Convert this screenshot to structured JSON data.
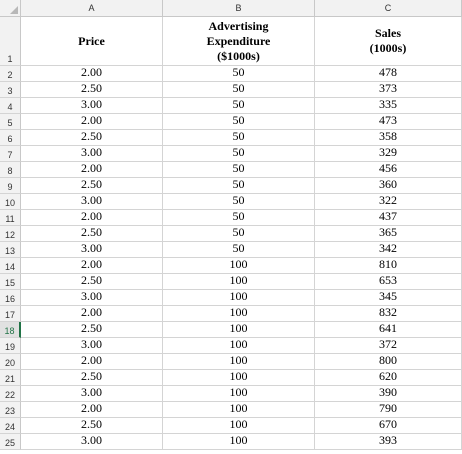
{
  "columns": [
    "A",
    "B",
    "C"
  ],
  "header_row": {
    "number": "1",
    "price": [
      "Price"
    ],
    "advertising": [
      "Advertising",
      "Expenditure",
      "($1000s)"
    ],
    "sales": [
      "Sales",
      "(1000s)"
    ]
  },
  "active_row": "18",
  "rows": [
    {
      "n": "2",
      "price": "2.00",
      "adv": "50",
      "sales": "478"
    },
    {
      "n": "3",
      "price": "2.50",
      "adv": "50",
      "sales": "373"
    },
    {
      "n": "4",
      "price": "3.00",
      "adv": "50",
      "sales": "335"
    },
    {
      "n": "5",
      "price": "2.00",
      "adv": "50",
      "sales": "473"
    },
    {
      "n": "6",
      "price": "2.50",
      "adv": "50",
      "sales": "358"
    },
    {
      "n": "7",
      "price": "3.00",
      "adv": "50",
      "sales": "329"
    },
    {
      "n": "8",
      "price": "2.00",
      "adv": "50",
      "sales": "456"
    },
    {
      "n": "9",
      "price": "2.50",
      "adv": "50",
      "sales": "360"
    },
    {
      "n": "10",
      "price": "3.00",
      "adv": "50",
      "sales": "322"
    },
    {
      "n": "11",
      "price": "2.00",
      "adv": "50",
      "sales": "437"
    },
    {
      "n": "12",
      "price": "2.50",
      "adv": "50",
      "sales": "365"
    },
    {
      "n": "13",
      "price": "3.00",
      "adv": "50",
      "sales": "342"
    },
    {
      "n": "14",
      "price": "2.00",
      "adv": "100",
      "sales": "810"
    },
    {
      "n": "15",
      "price": "2.50",
      "adv": "100",
      "sales": "653"
    },
    {
      "n": "16",
      "price": "3.00",
      "adv": "100",
      "sales": "345"
    },
    {
      "n": "17",
      "price": "2.00",
      "adv": "100",
      "sales": "832"
    },
    {
      "n": "18",
      "price": "2.50",
      "adv": "100",
      "sales": "641"
    },
    {
      "n": "19",
      "price": "3.00",
      "adv": "100",
      "sales": "372"
    },
    {
      "n": "20",
      "price": "2.00",
      "adv": "100",
      "sales": "800"
    },
    {
      "n": "21",
      "price": "2.50",
      "adv": "100",
      "sales": "620"
    },
    {
      "n": "22",
      "price": "3.00",
      "adv": "100",
      "sales": "390"
    },
    {
      "n": "23",
      "price": "2.00",
      "adv": "100",
      "sales": "790"
    },
    {
      "n": "24",
      "price": "2.50",
      "adv": "100",
      "sales": "670"
    },
    {
      "n": "25",
      "price": "3.00",
      "adv": "100",
      "sales": "393"
    }
  ]
}
